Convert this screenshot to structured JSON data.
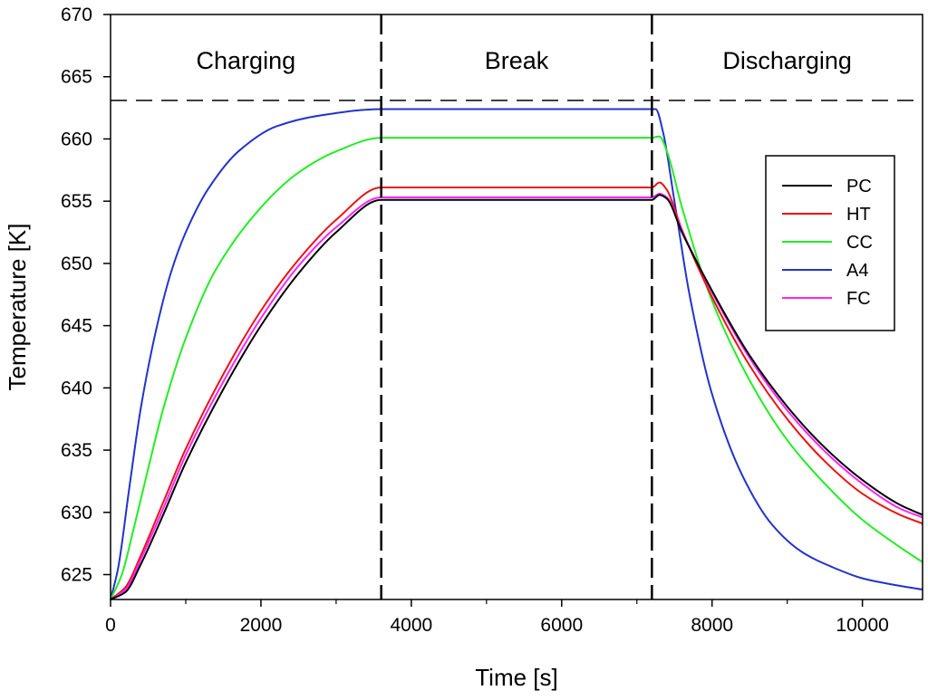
{
  "chart_data": {
    "type": "line",
    "title": "",
    "xlabel": "Time [s]",
    "ylabel": "Temperature [K]",
    "xlim": [
      0,
      10800
    ],
    "ylim": [
      623,
      670
    ],
    "xticks": [
      0,
      2000,
      4000,
      6000,
      8000,
      10000
    ],
    "xtick_labels": [
      "0",
      "2000",
      "4000",
      "6000",
      "8000",
      "10000"
    ],
    "yticks": [
      625,
      630,
      635,
      640,
      645,
      650,
      655,
      660,
      665,
      670
    ],
    "ytick_labels": [
      "625",
      "630",
      "635",
      "640",
      "645",
      "650",
      "655",
      "660",
      "665",
      "670"
    ],
    "grid": false,
    "legend_position": "right",
    "regions": [
      {
        "label": "Charging",
        "x_start": 0,
        "x_end": 3600
      },
      {
        "label": "Break",
        "x_start": 3600,
        "x_end": 7200
      },
      {
        "label": "Discharging",
        "x_start": 7200,
        "x_end": 10800
      }
    ],
    "vlines": [
      3600,
      7200
    ],
    "hline": 663.1,
    "series": [
      {
        "name": "PC",
        "color": "#000000",
        "x": [
          0,
          200,
          400,
          700,
          1000,
          1500,
          2000,
          2500,
          3000,
          3600,
          7200,
          7300,
          7400,
          7600,
          8000,
          8500,
          9000,
          9500,
          10000,
          10500,
          10800
        ],
        "y": [
          623,
          623.6,
          625.8,
          629.8,
          634.0,
          639.9,
          645.0,
          649.2,
          652.5,
          655.1,
          655.1,
          655.5,
          655.2,
          652.5,
          647.8,
          642.6,
          638.5,
          635.2,
          632.6,
          630.6,
          629.8
        ]
      },
      {
        "name": "HT",
        "color": "#ee1111",
        "x": [
          0,
          200,
          400,
          700,
          1000,
          1500,
          2000,
          2500,
          3000,
          3600,
          7200,
          7300,
          7400,
          7600,
          8000,
          8500,
          9000,
          9500,
          10000,
          10500,
          10800
        ],
        "y": [
          623,
          624.0,
          626.5,
          630.8,
          635.1,
          641.1,
          646.2,
          650.3,
          653.5,
          656.1,
          656.1,
          656.5,
          655.9,
          652.7,
          647.3,
          641.8,
          637.5,
          634.1,
          631.5,
          629.8,
          629.1
        ]
      },
      {
        "name": "CC",
        "color": "#22ee22",
        "x": [
          0,
          150,
          300,
          500,
          700,
          1000,
          1400,
          2000,
          2500,
          3000,
          3600,
          7200,
          7300,
          7400,
          7600,
          8000,
          8500,
          9000,
          9500,
          10000,
          10500,
          10800
        ],
        "y": [
          623,
          625.0,
          628.5,
          633.5,
          638.3,
          644.0,
          649.5,
          654.5,
          657.3,
          659.0,
          660.1,
          660.1,
          660.2,
          659.0,
          654.5,
          647.0,
          640.6,
          635.8,
          632.3,
          629.4,
          627.2,
          626.0
        ]
      },
      {
        "name": "A4",
        "color": "#2233cc",
        "x": [
          0,
          100,
          250,
          400,
          600,
          800,
          1000,
          1300,
          1700,
          2200,
          2800,
          3600,
          7200,
          7250,
          7350,
          7500,
          7700,
          8000,
          8400,
          8800,
          9200,
          9600,
          10000,
          10400,
          10800
        ],
        "y": [
          623,
          625.5,
          632.0,
          638.3,
          644.5,
          649.2,
          652.5,
          656.0,
          659.0,
          661.0,
          661.9,
          662.4,
          662.4,
          662.4,
          660.5,
          655.0,
          647.5,
          639.5,
          633.0,
          629.0,
          626.8,
          625.6,
          624.7,
          624.2,
          623.8
        ]
      },
      {
        "name": "FC",
        "color": "#ff22ff",
        "x": [
          0,
          200,
          400,
          700,
          1000,
          1500,
          2000,
          2500,
          3000,
          3600,
          7200,
          7300,
          7400,
          7600,
          8000,
          8500,
          9000,
          9500,
          10000,
          10500,
          10800
        ],
        "y": [
          623,
          623.8,
          626.2,
          630.3,
          634.6,
          640.5,
          645.6,
          649.8,
          652.9,
          655.3,
          655.3,
          655.6,
          655.3,
          652.6,
          647.7,
          642.4,
          638.2,
          634.9,
          632.3,
          630.3,
          629.6
        ]
      }
    ]
  }
}
